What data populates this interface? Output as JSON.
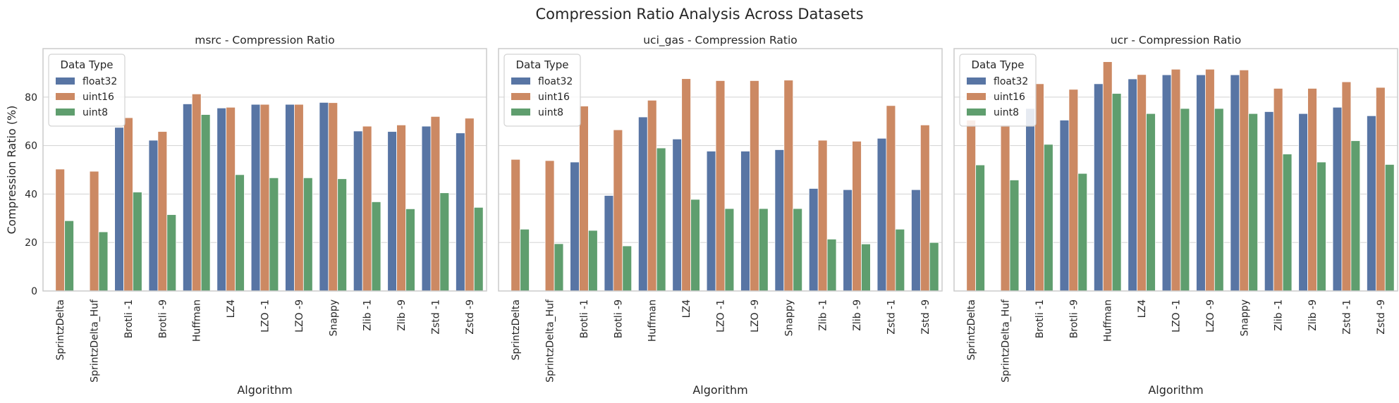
{
  "figure_title": "Compression Ratio Analysis Across Datasets",
  "colors": {
    "float32": "#5875a4",
    "uint16": "#cc8963",
    "uint8": "#5f9e6e"
  },
  "chart_data": [
    {
      "type": "bar",
      "title": "msrc - Compression Ratio",
      "xlabel": "Algorithm",
      "ylabel": "Compression Ratio (%)",
      "ylim": [
        0,
        100
      ],
      "yticks": [
        0,
        20,
        40,
        60,
        80
      ],
      "grid": true,
      "legend": {
        "title": "Data Type",
        "placement": "top-left"
      },
      "categories": [
        "SprintzDelta",
        "SprintzDelta_Huf",
        "Brotli -1",
        "Brotli -9",
        "Huffman",
        "LZ4",
        "LZO -1",
        "LZO -9",
        "Snappy",
        "Zlib -1",
        "Zlib -9",
        "Zstd -1",
        "Zstd -9"
      ],
      "series": [
        {
          "name": "float32",
          "values": [
            null,
            null,
            67.5,
            62.2,
            77.2,
            75.5,
            77,
            77,
            77.8,
            66,
            65.8,
            68,
            65.2
          ]
        },
        {
          "name": "uint16",
          "values": [
            50.3,
            49.4,
            71.5,
            65.8,
            81.3,
            75.8,
            77,
            77,
            77.7,
            68,
            68.5,
            72,
            71.3
          ]
        },
        {
          "name": "uint8",
          "values": [
            29,
            24.4,
            40.8,
            31.5,
            72.8,
            48,
            46.7,
            46.7,
            46.3,
            36.8,
            33.9,
            40.5,
            34.5
          ]
        }
      ]
    },
    {
      "type": "bar",
      "title": "uci_gas - Compression Ratio",
      "xlabel": "Algorithm",
      "ylabel": "",
      "ylim": [
        0,
        100
      ],
      "yticks": [
        0,
        20,
        40,
        60,
        80
      ],
      "grid": true,
      "legend": {
        "title": "Data Type",
        "placement": "top-left"
      },
      "categories": [
        "SprintzDelta",
        "SprintzDelta_Huf",
        "Brotli -1",
        "Brotli -9",
        "Huffman",
        "LZ4",
        "LZO -1",
        "LZO -9",
        "Snappy",
        "Zlib -1",
        "Zlib -9",
        "Zstd -1",
        "Zstd -9"
      ],
      "series": [
        {
          "name": "float32",
          "values": [
            null,
            null,
            53.2,
            39.4,
            71.8,
            62.7,
            57.7,
            57.7,
            58.3,
            42.3,
            41.8,
            63,
            41.8
          ]
        },
        {
          "name": "uint16",
          "values": [
            54.3,
            53.8,
            76.3,
            66.5,
            78.7,
            87.6,
            86.8,
            86.8,
            87,
            62.2,
            61.8,
            76.5,
            68.5
          ]
        },
        {
          "name": "uint8",
          "values": [
            25.5,
            19.5,
            25,
            18.6,
            59,
            37.8,
            34,
            34,
            34,
            21.4,
            19.4,
            25.5,
            20
          ]
        }
      ]
    },
    {
      "type": "bar",
      "title": "ucr - Compression Ratio",
      "xlabel": "Algorithm",
      "ylabel": "",
      "ylim": [
        0,
        100
      ],
      "yticks": [
        0,
        20,
        40,
        60,
        80
      ],
      "grid": true,
      "legend": {
        "title": "Data Type",
        "placement": "top-left"
      },
      "categories": [
        "SprintzDelta",
        "SprintzDelta_Huf",
        "Brotli -1",
        "Brotli -9",
        "Huffman",
        "LZ4",
        "LZO -1",
        "LZO -9",
        "Snappy",
        "Zlib -1",
        "Zlib -9",
        "Zstd -1",
        "Zstd -9"
      ],
      "series": [
        {
          "name": "float32",
          "values": [
            null,
            null,
            75.3,
            70.5,
            85.5,
            87.5,
            89.2,
            89.2,
            89.2,
            74,
            73.2,
            75.8,
            72.3
          ]
        },
        {
          "name": "uint16",
          "values": [
            70.5,
            68.5,
            85.5,
            83.2,
            94.6,
            89.3,
            91.5,
            91.5,
            91.2,
            83.6,
            83.6,
            86.3,
            84
          ]
        },
        {
          "name": "uint8",
          "values": [
            52,
            45.8,
            60.5,
            48.5,
            81.5,
            73.2,
            75.3,
            75.3,
            73.2,
            56.5,
            53.2,
            62,
            52.2
          ]
        }
      ]
    }
  ]
}
